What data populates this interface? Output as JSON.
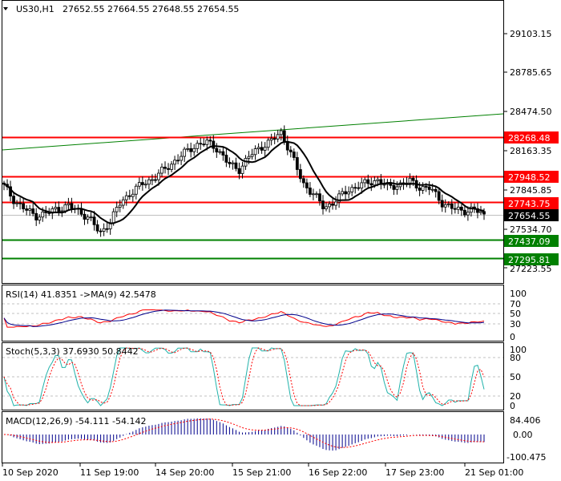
{
  "header": {
    "symbol": "US30,H1",
    "ohlc": "27652.55 27664.55 27648.55 27654.55"
  },
  "price_axis": {
    "ticks": [
      "29103.15",
      "28785.65",
      "28474.50",
      "28163.35",
      "27845.85",
      "27534.70",
      "27223.55"
    ]
  },
  "price_levels": [
    {
      "label": "28268.48",
      "color": "#ff0000",
      "kind": "resistance"
    },
    {
      "label": "27948.52",
      "color": "#ff0000",
      "kind": "resistance"
    },
    {
      "label": "27743.75",
      "color": "#ff0000",
      "kind": "resistance"
    },
    {
      "label": "27437.09",
      "color": "#008000",
      "kind": "support"
    },
    {
      "label": "27295.81",
      "color": "#008000",
      "kind": "support"
    }
  ],
  "current_price": {
    "label": "27654.55",
    "color": "#000000"
  },
  "rsi": {
    "title": "RSI(14) 41.8351  ->MA(9) 42.5478",
    "ticks": [
      "100",
      "70",
      "50",
      "30",
      "0"
    ]
  },
  "stoch": {
    "title": "Stoch(5,3,3) 37.6930 50.8442",
    "ticks": [
      "100",
      "80",
      "50",
      "20",
      "0"
    ]
  },
  "macd": {
    "title": "MACD(12,26,9) -54.111 -54.142",
    "ticks": [
      "84.406",
      "0.00",
      "-100.475"
    ]
  },
  "time_axis": {
    "labels": [
      "10 Sep 2020",
      "11 Sep 19:00",
      "14 Sep 20:00",
      "15 Sep 21:00",
      "16 Sep 22:00",
      "17 Sep 23:00",
      "21 Sep 01:00"
    ]
  },
  "colors": {
    "resistance": "#ff0000",
    "support": "#008000",
    "trendline": "#008000",
    "candles": "#000000",
    "ma_line": "#000000",
    "rsi_line": "#ff0000",
    "rsi_ma": "#00008b",
    "stoch_main": "#20b2aa",
    "stoch_signal": "#ff0000",
    "macd_hist": "#00008b",
    "macd_signal": "#ff0000"
  },
  "chart_data": {
    "type": "candlestick",
    "symbol": "US30",
    "timeframe": "H1",
    "last_bar": {
      "open": 27652.55,
      "high": 27664.55,
      "low": 27648.55,
      "close": 27654.55
    },
    "key_closes": [
      27880,
      27760,
      27690,
      27640,
      27660,
      27700,
      27720,
      27680,
      27620,
      27500,
      27600,
      27760,
      27830,
      27900,
      27940,
      28010,
      28080,
      28150,
      28210,
      28230,
      28180,
      28060,
      28010,
      28120,
      28190,
      28240,
      28310,
      28120,
      27900,
      27820,
      27700,
      27760,
      27830,
      27880,
      27900,
      27930,
      27870,
      27890,
      27920,
      27870,
      27860,
      27750,
      27700,
      27680,
      27690,
      27654
    ],
    "levels": [
      28268.48,
      27948.52,
      27743.75,
      27437.09,
      27295.81
    ],
    "ylim": [
      27150,
      29200
    ],
    "indicators": {
      "RSI": {
        "period": 14,
        "value": 41.8351,
        "ma_period": 9,
        "ma_value": 42.5478
      },
      "Stochastic": {
        "params": "5,3,3",
        "main": 37.693,
        "signal": 50.8442
      },
      "MACD": {
        "params": "12,26,9",
        "main": -54.111,
        "signal": -54.142
      }
    }
  }
}
